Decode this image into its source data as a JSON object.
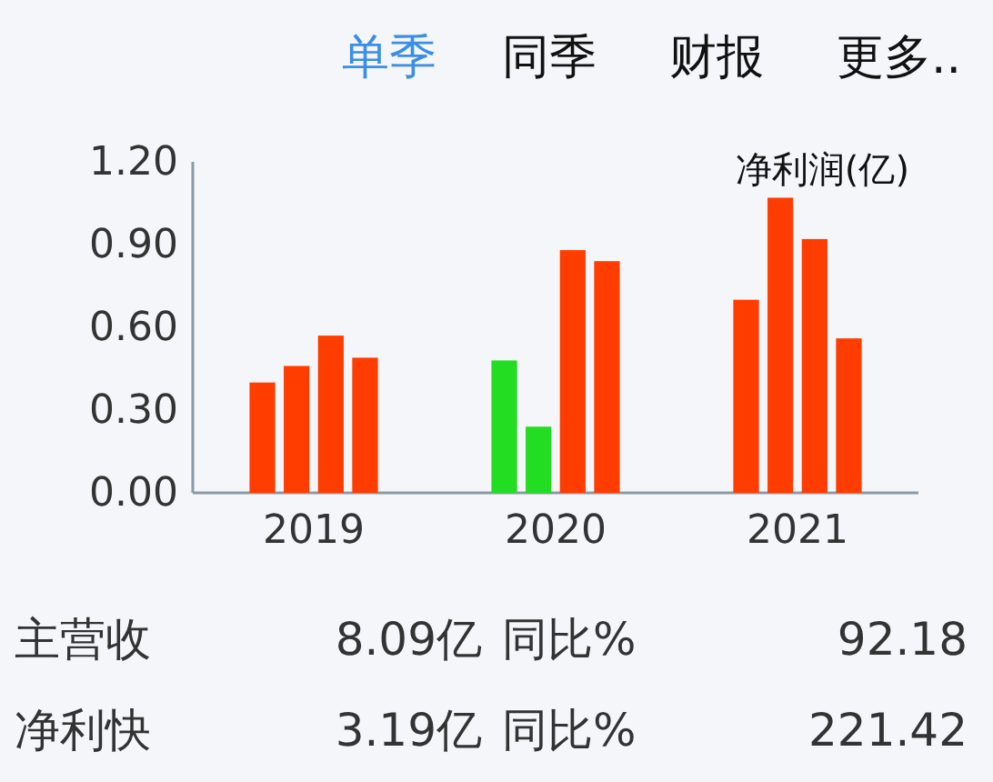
{
  "chart_data": {
    "type": "bar",
    "ylabel": "净利润(亿)",
    "categories": [
      "2019",
      "2020",
      "2021"
    ],
    "series": [
      {
        "colors": [
          "#ff3d00",
          "#22dd22",
          "#ff3d00"
        ],
        "values": [
          0.4,
          0.48,
          0.7
        ]
      },
      {
        "colors": [
          "#ff3d00",
          "#22dd22",
          "#ff3d00"
        ],
        "values": [
          0.46,
          0.24,
          1.07
        ]
      },
      {
        "colors": [
          "#ff3d00",
          "#ff3d00",
          "#ff3d00"
        ],
        "values": [
          0.57,
          0.88,
          0.92
        ]
      },
      {
        "colors": [
          "#ff3d00",
          "#ff3d00",
          "#ff3d00"
        ],
        "values": [
          0.49,
          0.84,
          0.56
        ]
      }
    ],
    "ylim": [
      0,
      1.2
    ],
    "yticks": [
      {
        "value": 0,
        "label": "0.00"
      },
      {
        "value": 0.3,
        "label": "0.30"
      },
      {
        "value": 0.6,
        "label": "0.60"
      },
      {
        "value": 0.9,
        "label": "0.90"
      },
      {
        "value": 1.2,
        "label": "1.20"
      }
    ],
    "grid": false,
    "annotations": [
      "单季",
      "同季",
      "财报",
      "更多..",
      "主营收",
      "8.09亿",
      "同比%",
      "92.18",
      "净利快",
      "3.19亿",
      "同比%",
      "221.42"
    ]
  }
}
